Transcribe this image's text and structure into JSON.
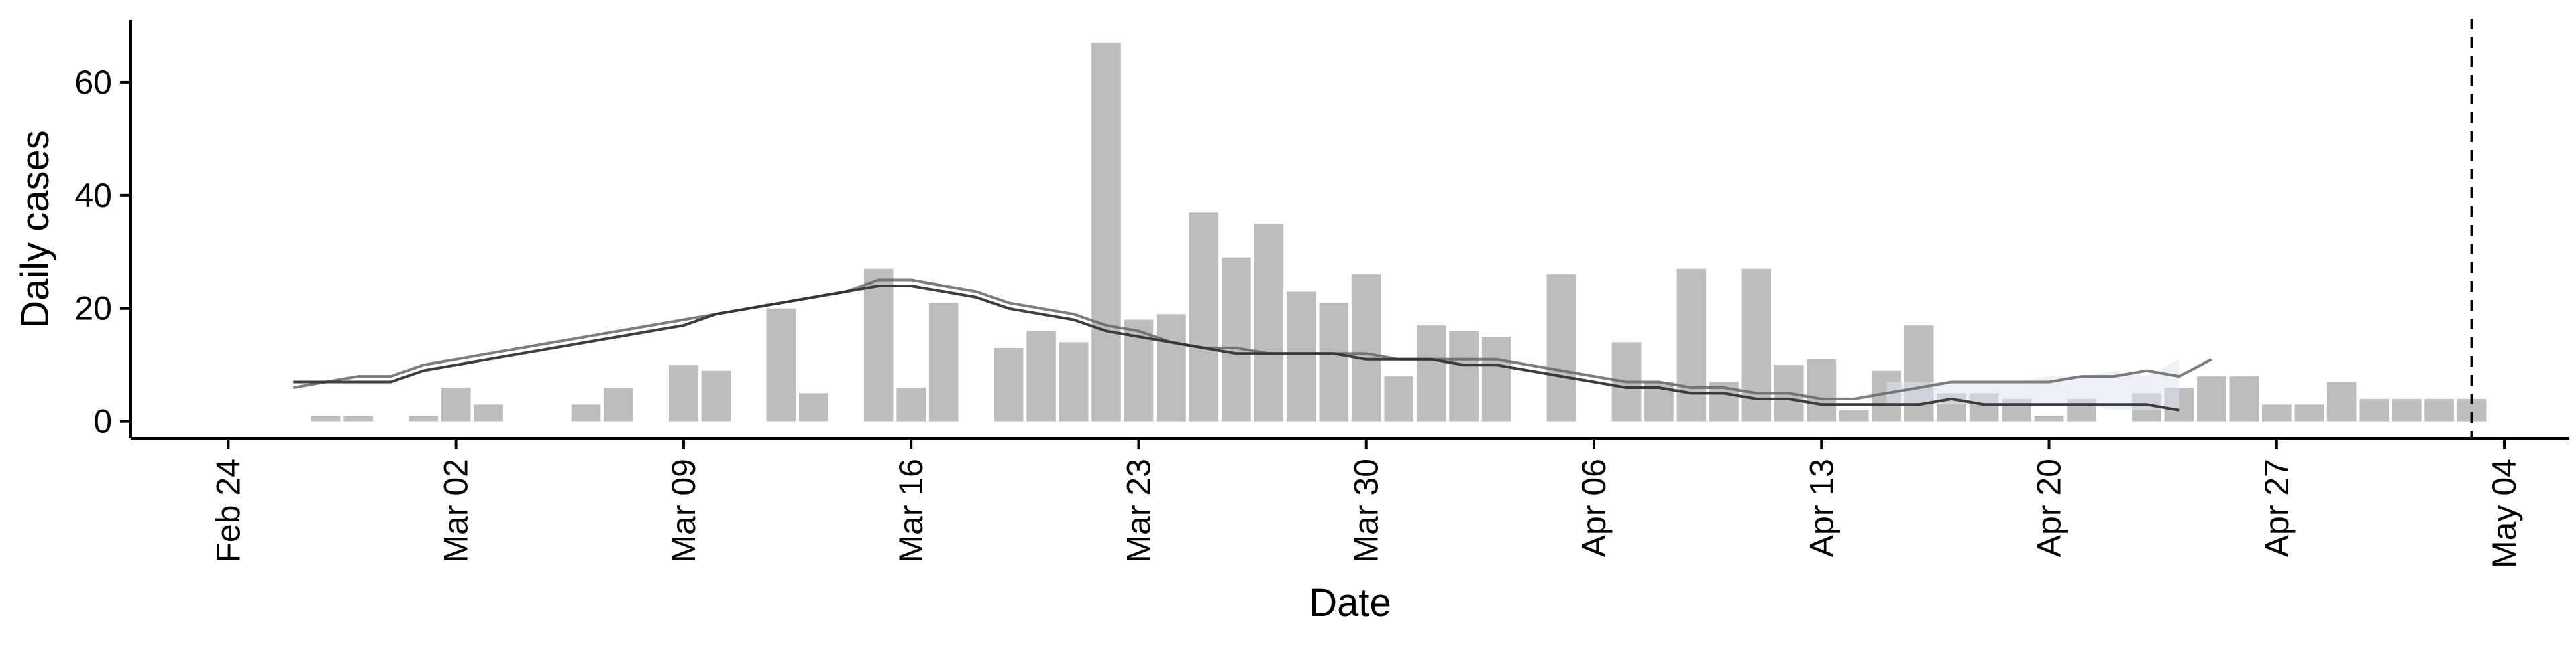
{
  "chart_data": {
    "type": "bar",
    "xlabel": "Date",
    "ylabel": "Daily cases",
    "ylim": [
      -3,
      71
    ],
    "yticks": [
      0,
      20,
      40,
      60
    ],
    "xlim": [
      "2020-02-21",
      "2020-05-06"
    ],
    "xticks": [
      {
        "date": "2020-02-24",
        "label": "Feb 24"
      },
      {
        "date": "2020-03-02",
        "label": "Mar 02"
      },
      {
        "date": "2020-03-09",
        "label": "Mar 09"
      },
      {
        "date": "2020-03-16",
        "label": "Mar 16"
      },
      {
        "date": "2020-03-23",
        "label": "Mar 23"
      },
      {
        "date": "2020-03-30",
        "label": "Mar 30"
      },
      {
        "date": "2020-04-06",
        "label": "Apr 06"
      },
      {
        "date": "2020-04-13",
        "label": "Apr 13"
      },
      {
        "date": "2020-04-20",
        "label": "Apr 20"
      },
      {
        "date": "2020-04-27",
        "label": "Apr 27"
      },
      {
        "date": "2020-05-04",
        "label": "May 04"
      }
    ],
    "bars": {
      "color": "#bdbdbd",
      "start_date": "2020-02-27",
      "values": [
        1,
        1,
        0,
        1,
        6,
        3,
        0,
        0,
        3,
        6,
        0,
        10,
        9,
        0,
        20,
        5,
        0,
        27,
        6,
        21,
        0,
        13,
        16,
        14,
        67,
        18,
        19,
        37,
        29,
        35,
        23,
        21,
        26,
        8,
        17,
        16,
        15,
        0,
        26,
        0,
        14,
        7,
        27,
        7,
        27,
        10,
        11,
        2,
        9,
        17,
        5,
        5,
        4,
        1,
        4,
        0,
        5,
        6,
        8,
        8,
        3,
        3,
        7,
        4,
        4,
        4,
        4
      ]
    },
    "lines": [
      {
        "color": "#666666",
        "start_date": "2020-02-26",
        "values": [
          6,
          7,
          8,
          8,
          10,
          11,
          12,
          13,
          14,
          15,
          16,
          17,
          18,
          19,
          20,
          21,
          22,
          23,
          25,
          25,
          24,
          23,
          21,
          20,
          19,
          17,
          16,
          14,
          13,
          13,
          12,
          12,
          12,
          12,
          11,
          11,
          11,
          11,
          10,
          9,
          8,
          7,
          7,
          6,
          6,
          5,
          5,
          4,
          4,
          5,
          6,
          7,
          7,
          7,
          7,
          8,
          8,
          9,
          8,
          11
        ]
      },
      {
        "color": "#333333",
        "start_date": "2020-02-26",
        "values": [
          7,
          7,
          7,
          7,
          9,
          10,
          11,
          12,
          13,
          14,
          15,
          16,
          17,
          19,
          20,
          21,
          22,
          23,
          24,
          24,
          23,
          22,
          20,
          19,
          18,
          16,
          15,
          14,
          13,
          12,
          12,
          12,
          12,
          11,
          11,
          11,
          10,
          10,
          9,
          8,
          7,
          6,
          6,
          5,
          5,
          4,
          4,
          3,
          3,
          3,
          3,
          4,
          3,
          3,
          3,
          3,
          3,
          3,
          2
        ]
      }
    ],
    "band": {
      "color": "#dfe3ef",
      "start_date": "2020-04-15",
      "lower": [
        3,
        3,
        3,
        3,
        3,
        3,
        3,
        2,
        2,
        2
      ],
      "upper": [
        7,
        7,
        7,
        7,
        7,
        8,
        8,
        9,
        8,
        11
      ]
    },
    "vline": {
      "date": "2020-05-03",
      "style": "dashed",
      "color": "#000000"
    }
  }
}
